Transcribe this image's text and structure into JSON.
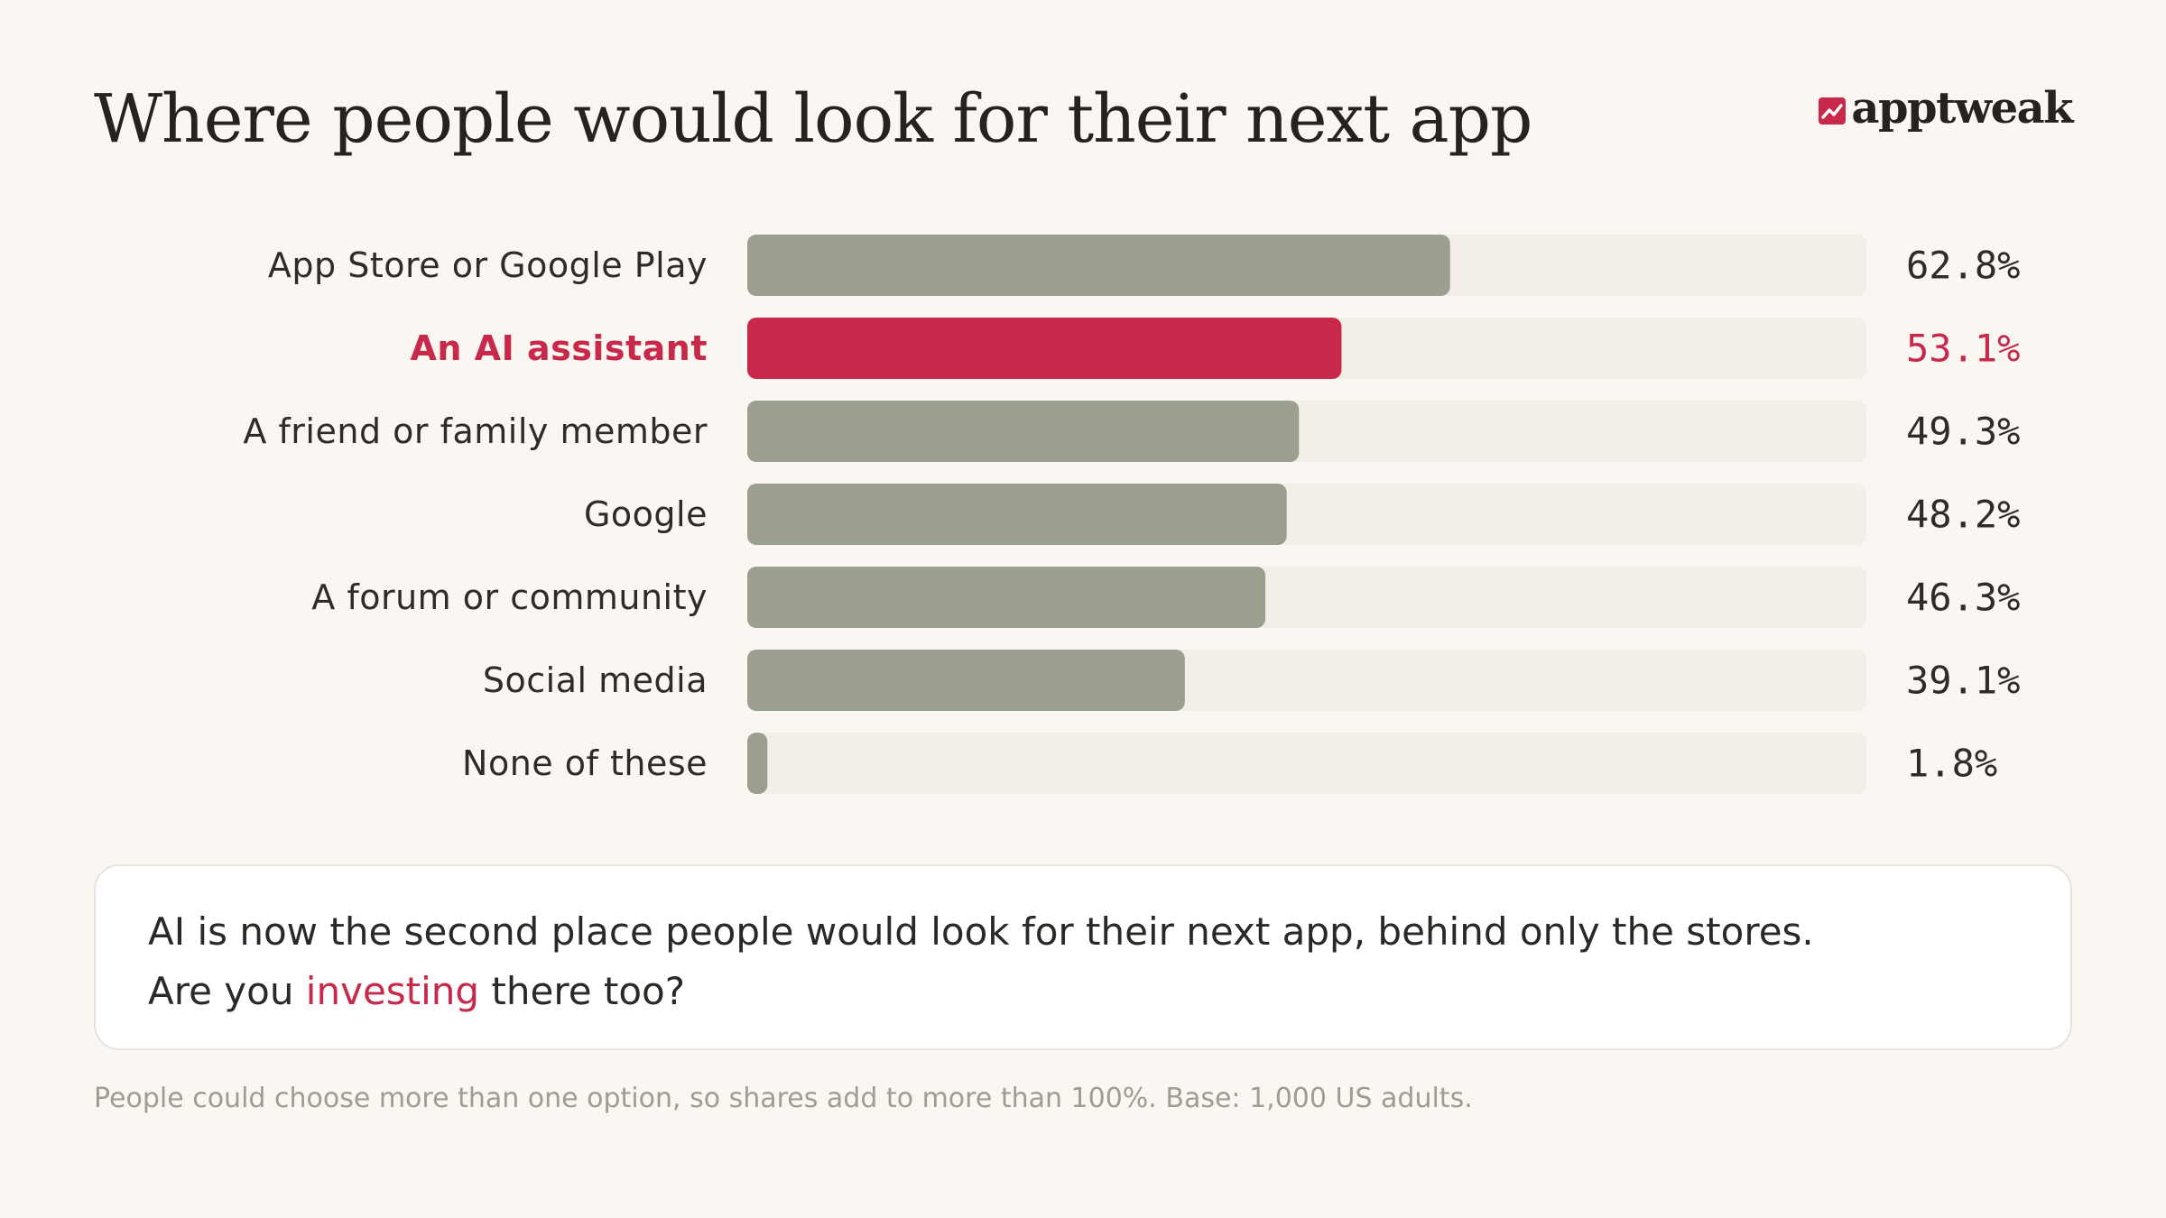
{
  "header": {
    "title": "Where people would look for their next app",
    "logo_text": "apptweak"
  },
  "colors": {
    "background": "#faf7f2",
    "bar_default": "#9b9f90",
    "bar_highlight": "#c8294a",
    "track": "#f3efe8",
    "accent": "#c8294a"
  },
  "chart_data": {
    "type": "bar",
    "orientation": "horizontal",
    "categories": [
      "App Store or Google Play",
      "An AI assistant",
      "A friend or family member",
      "Google",
      "A forum or community",
      "Social media",
      "None of these"
    ],
    "values": [
      62.8,
      53.1,
      49.3,
      48.2,
      46.3,
      39.1,
      1.8
    ],
    "value_labels": [
      "62.8%",
      "53.1%",
      "49.3%",
      "48.2%",
      "46.3%",
      "39.1%",
      "1.8%"
    ],
    "highlight": "An AI assistant",
    "xlim": [
      0,
      100
    ],
    "grid": false,
    "legend": "none"
  },
  "callout": {
    "line1": "AI is now the second place people would look for their next app, behind only the stores.",
    "line2_before": "Are you ",
    "line2_accent": "investing",
    "line2_after": " there too?"
  },
  "footnote": "People could choose more than one option, so shares add to more than 100%. Base: 1,000 US adults."
}
